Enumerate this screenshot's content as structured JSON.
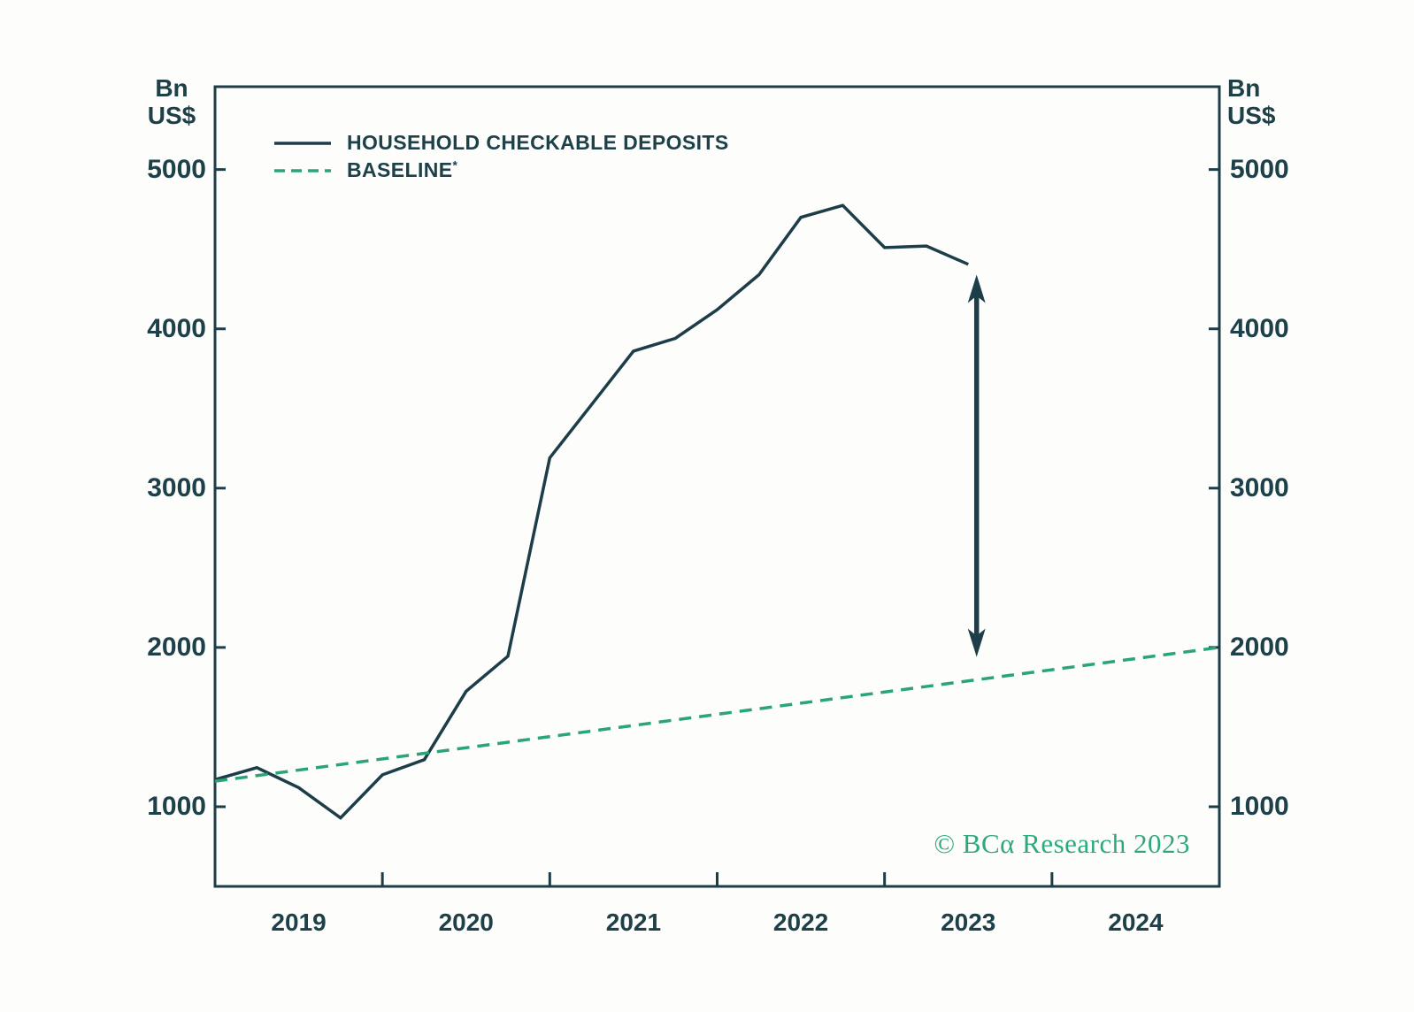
{
  "figure": {
    "unit_top": "Bn",
    "unit_bottom": "US$",
    "watermark": "© BCα Research 2023",
    "colors": {
      "dark": "#1d3d48",
      "text": "#1d4049",
      "green": "#2aa578",
      "watermark_green": "#2ea97a",
      "background": "#fdfdfc"
    },
    "legend": [
      {
        "label": "HOUSEHOLD CHECKABLE DEPOSITS",
        "sup": "",
        "swatch": "solid-line"
      },
      {
        "label": "BASELINE",
        "sup": "*",
        "swatch": "dashed-line"
      }
    ]
  },
  "chart_data": {
    "type": "line",
    "title": "",
    "ylabel_left": "Bn US$",
    "ylabel_right": "Bn US$",
    "xlim": [
      2019,
      2025
    ],
    "ylim": [
      500,
      5520
    ],
    "grid": false,
    "legend_position": "top-left-inside",
    "y_ticks": [
      5000,
      4000,
      3000,
      2000,
      1000
    ],
    "x_ticks": [
      2020,
      2021,
      2022,
      2023,
      2024
    ],
    "x_year_labels": [
      "2019",
      "2020",
      "2021",
      "2022",
      "2023",
      "2024"
    ],
    "series": [
      {
        "name": "HOUSEHOLD CHECKABLE DEPOSITS",
        "style": "solid",
        "color": "#1d3d48",
        "x": [
          2019.0,
          2019.25,
          2019.5,
          2019.75,
          2020.0,
          2020.25,
          2020.5,
          2020.75,
          2021.0,
          2021.25,
          2021.5,
          2021.75,
          2022.0,
          2022.25,
          2022.5,
          2022.75,
          2023.0,
          2023.25,
          2023.5
        ],
        "values": [
          1170,
          1245,
          1120,
          930,
          1200,
          1295,
          1725,
          1945,
          3190,
          3525,
          3860,
          3940,
          4120,
          4340,
          4700,
          4775,
          4510,
          4520,
          4405
        ]
      },
      {
        "name": "BASELINE*",
        "style": "dashed",
        "color": "#2aa578",
        "x": [
          2019.0,
          2025.0
        ],
        "values": [
          1160,
          2000
        ]
      }
    ],
    "annotation_arrow": {
      "x": 2023.55,
      "y_from": 4340,
      "y_to": 1940
    }
  }
}
